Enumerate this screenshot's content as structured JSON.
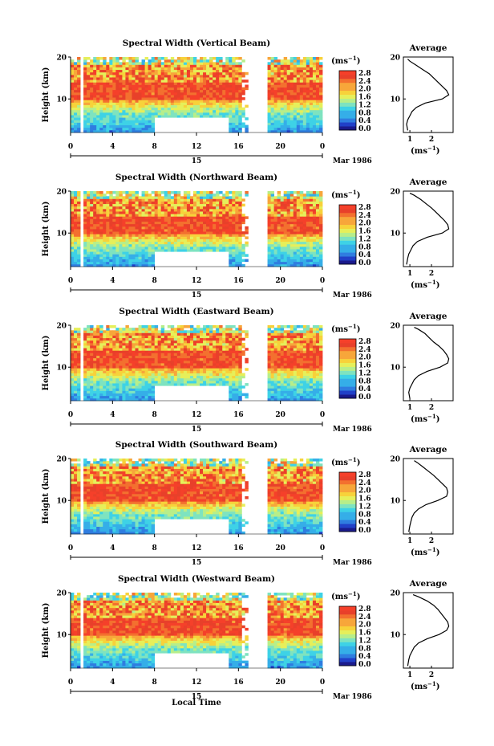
{
  "colors": {
    "colormap": [
      "#1a1a8c",
      "#2140c8",
      "#2f7de0",
      "#35aee8",
      "#3ed2e6",
      "#7ee3c0",
      "#b7ee8a",
      "#e6ef5a",
      "#f7d23a",
      "#f7a63a",
      "#f3702f",
      "#e8402a",
      "#f5402a"
    ],
    "line": "#000000",
    "background": "#ffffff"
  },
  "shared": {
    "xaxis_title": "Local Time",
    "ylabel": "Height (km)",
    "colorbar_unit": "(ms",
    "colorbar_unit_exp": "−1",
    "colorbar_unit_end": ")",
    "colorbar_ticks": [
      "0.0",
      "0.4",
      "0.8",
      "1.2",
      "1.6",
      "2.0",
      "2.4",
      "2.8"
    ],
    "time_ticks": [
      "0",
      "4",
      "8",
      "12",
      "16",
      "20",
      "0"
    ],
    "day_label": "15",
    "date_label": "Mar 1986",
    "avg_title": "Average",
    "avg_xlabel": "(ms",
    "avg_xlabel_exp": "−1",
    "avg_xlabel_end": ")",
    "avg_xticks": [
      "1",
      "2"
    ],
    "height_ticks": [
      "20",
      "10"
    ]
  },
  "chart_data": [
    {
      "type": "heatmap",
      "title": "Spectral Width (Vertical Beam)",
      "xlabel": "",
      "ylabel": "Height (km)",
      "x_range_hours": [
        0,
        24
      ],
      "ylim_km": [
        2,
        20
      ],
      "clim": [
        0.0,
        3.0
      ],
      "data_gaps_hours": [
        [
          0.9,
          1.1
        ],
        [
          16.2,
          16.9
        ],
        [
          16.9,
          18.8
        ]
      ],
      "low_cutoff_region": {
        "x_hours": [
          8,
          15
        ],
        "below_km": 5.5
      },
      "max_width_layer_km": [
        10,
        14
      ],
      "average_profile": {
        "xlim": [
          0.7,
          3.0
        ],
        "height_km": [
          2.5,
          4,
          5,
          6,
          7,
          8,
          9,
          10,
          11,
          12,
          13,
          14,
          15,
          16,
          17,
          18,
          19,
          19.5
        ],
        "width_ms": [
          0.9,
          0.85,
          0.9,
          1.0,
          1.1,
          1.3,
          1.7,
          2.5,
          2.8,
          2.7,
          2.5,
          2.3,
          2.1,
          1.9,
          1.6,
          1.3,
          1.0,
          0.9
        ]
      }
    },
    {
      "type": "heatmap",
      "title": "Spectral Width (Northward Beam)",
      "xlabel": "",
      "ylabel": "Height (km)",
      "x_range_hours": [
        0,
        24
      ],
      "ylim_km": [
        2,
        20
      ],
      "clim": [
        0.0,
        3.0
      ],
      "data_gaps_hours": [
        [
          0.9,
          1.1
        ],
        [
          16.2,
          16.9
        ],
        [
          16.9,
          18.8
        ]
      ],
      "low_cutoff_region": {
        "x_hours": [
          8,
          15
        ],
        "below_km": 5.5
      },
      "max_width_layer_km": [
        10,
        14
      ],
      "average_profile": {
        "xlim": [
          0.7,
          3.0
        ],
        "height_km": [
          2.5,
          4,
          5,
          6,
          7,
          8,
          9,
          10,
          11,
          12,
          13,
          14,
          15,
          16,
          17,
          18,
          19,
          19.5
        ],
        "width_ms": [
          0.85,
          0.9,
          0.95,
          1.05,
          1.15,
          1.35,
          1.8,
          2.5,
          2.8,
          2.75,
          2.6,
          2.4,
          2.2,
          2.0,
          1.75,
          1.5,
          1.2,
          1.0
        ]
      }
    },
    {
      "type": "heatmap",
      "title": "Spectral Width (Eastward Beam)",
      "xlabel": "",
      "ylabel": "Height (km)",
      "x_range_hours": [
        0,
        24
      ],
      "ylim_km": [
        2,
        20
      ],
      "clim": [
        0.0,
        3.0
      ],
      "data_gaps_hours": [
        [
          0.9,
          1.1
        ],
        [
          16.2,
          16.9
        ],
        [
          16.9,
          18.8
        ]
      ],
      "low_cutoff_region": {
        "x_hours": [
          8,
          15
        ],
        "below_km": 5.5
      },
      "max_width_layer_km": [
        10,
        14
      ],
      "average_profile": {
        "xlim": [
          0.7,
          3.0
        ],
        "height_km": [
          2.5,
          4,
          5,
          6,
          7,
          8,
          9,
          10,
          11,
          12,
          13,
          14,
          15,
          16,
          17,
          18,
          19,
          19.5
        ],
        "width_ms": [
          1.0,
          0.95,
          1.0,
          1.1,
          1.2,
          1.4,
          1.8,
          2.4,
          2.75,
          2.8,
          2.7,
          2.55,
          2.35,
          2.1,
          1.9,
          1.7,
          1.4,
          1.2
        ]
      }
    },
    {
      "type": "heatmap",
      "title": "Spectral Width (Southward Beam)",
      "xlabel": "",
      "ylabel": "Height (km)",
      "x_range_hours": [
        0,
        24
      ],
      "ylim_km": [
        2,
        20
      ],
      "clim": [
        0.0,
        3.0
      ],
      "data_gaps_hours": [
        [
          0.9,
          1.1
        ],
        [
          16.2,
          16.9
        ],
        [
          16.9,
          18.8
        ]
      ],
      "low_cutoff_region": {
        "x_hours": [
          8,
          15
        ],
        "below_km": 5.5
      },
      "max_width_layer_km": [
        10,
        14
      ],
      "average_profile": {
        "xlim": [
          0.7,
          3.0
        ],
        "height_km": [
          2.5,
          4,
          5,
          6,
          7,
          8,
          9,
          10,
          11,
          12,
          13,
          14,
          15,
          16,
          17,
          18,
          19,
          19.5
        ],
        "width_ms": [
          0.95,
          1.0,
          1.05,
          1.1,
          1.2,
          1.4,
          1.75,
          2.3,
          2.7,
          2.75,
          2.7,
          2.5,
          2.3,
          2.1,
          1.85,
          1.6,
          1.35,
          1.2
        ]
      }
    },
    {
      "type": "heatmap",
      "title": "Spectral Width (Westward Beam)",
      "xlabel": "",
      "ylabel": "Height (km)",
      "x_range_hours": [
        0,
        24
      ],
      "ylim_km": [
        2,
        20
      ],
      "clim": [
        0.0,
        3.0
      ],
      "data_gaps_hours": [
        [
          0.9,
          1.1
        ],
        [
          16.2,
          16.9
        ],
        [
          16.9,
          18.8
        ]
      ],
      "low_cutoff_region": {
        "x_hours": [
          8,
          15
        ],
        "below_km": 5.5
      },
      "max_width_layer_km": [
        10,
        14
      ],
      "average_profile": {
        "xlim": [
          0.7,
          3.0
        ],
        "height_km": [
          2.5,
          4,
          5,
          6,
          7,
          8,
          9,
          10,
          11,
          12,
          13,
          14,
          15,
          16,
          17,
          18,
          19,
          19.5
        ],
        "width_ms": [
          0.9,
          0.95,
          1.0,
          1.1,
          1.2,
          1.4,
          1.8,
          2.35,
          2.7,
          2.8,
          2.75,
          2.6,
          2.45,
          2.3,
          2.1,
          1.8,
          1.4,
          1.15
        ]
      }
    }
  ]
}
